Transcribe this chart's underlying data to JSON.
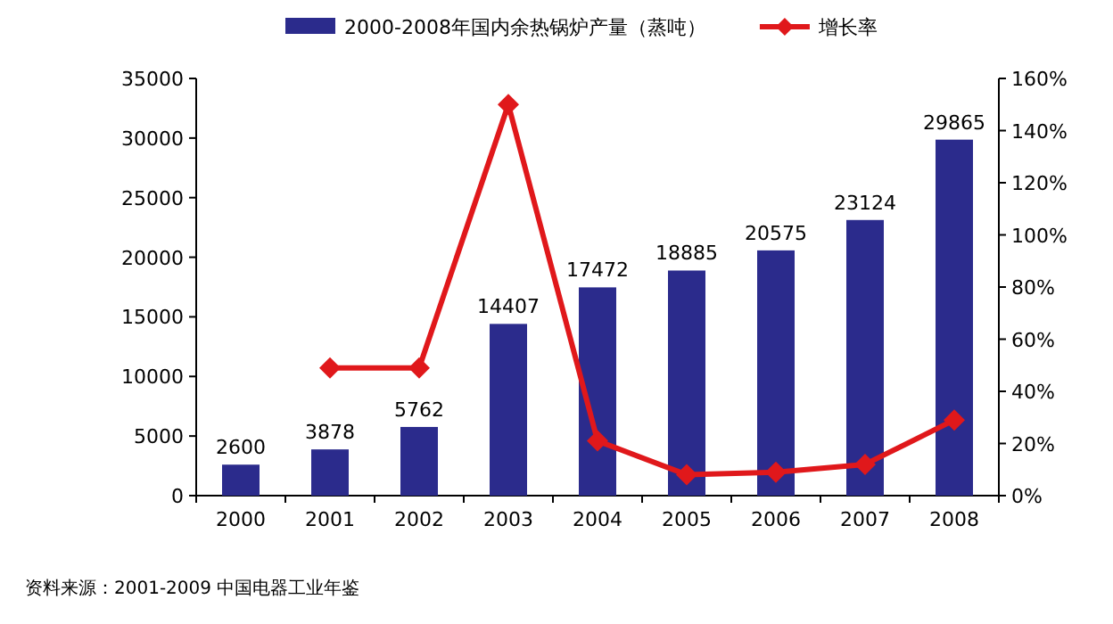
{
  "chart_data": {
    "type": "bar",
    "categories": [
      "2000",
      "2001",
      "2002",
      "2003",
      "2004",
      "2005",
      "2006",
      "2007",
      "2008"
    ],
    "series": [
      {
        "name": "2000-2008年国内余热锅炉产量（蒸吨）",
        "color": "#2b2b8c",
        "data_labels": true,
        "values": [
          2600,
          3878,
          5762,
          14407,
          17472,
          18885,
          20575,
          23124,
          29865
        ]
      },
      {
        "name": "增长率",
        "type": "line",
        "axis": "y2",
        "color": "#e0181b",
        "marker": "diamond",
        "values": [
          null,
          49,
          49,
          150,
          21,
          8,
          9,
          12,
          29
        ]
      }
    ],
    "ylim": [
      0,
      35000
    ],
    "yticks": [
      0,
      5000,
      10000,
      15000,
      20000,
      25000,
      30000,
      35000
    ],
    "y2lim": [
      0,
      160
    ],
    "y2ticks": [
      {
        "value": 0,
        "label": "0%"
      },
      {
        "value": 20,
        "label": "20%"
      },
      {
        "value": 40,
        "label": "40%"
      },
      {
        "value": 60,
        "label": "60%"
      },
      {
        "value": 80,
        "label": "80%"
      },
      {
        "value": 100,
        "label": "100%"
      },
      {
        "value": 120,
        "label": "120%"
      },
      {
        "value": 140,
        "label": "140%"
      },
      {
        "value": 160,
        "label": "160%"
      }
    ],
    "grid": false,
    "legend": "top",
    "annotations": [
      "资料来源：2001-2009 中国电器工业年鉴"
    ]
  }
}
